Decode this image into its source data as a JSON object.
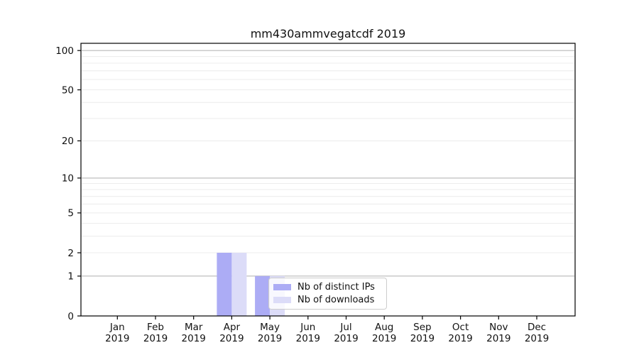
{
  "chart_data": {
    "type": "bar",
    "title": "mm430ammvegatcdf 2019",
    "categories": [
      "Jan 2019",
      "Feb 2019",
      "Mar 2019",
      "Apr 2019",
      "May 2019",
      "Jun 2019",
      "Jul 2019",
      "Aug 2019",
      "Sep 2019",
      "Oct 2019",
      "Nov 2019",
      "Dec 2019"
    ],
    "series": [
      {
        "name": "Nb of distinct IPs",
        "color": "#acacf5",
        "values": [
          0,
          0,
          0,
          2,
          1,
          0,
          0,
          0,
          0,
          0,
          0,
          0
        ]
      },
      {
        "name": "Nb of downloads",
        "color": "#dcdcf8",
        "values": [
          0,
          0,
          0,
          2,
          1,
          0,
          0,
          0,
          0,
          0,
          0,
          0
        ]
      }
    ],
    "xlabel": "",
    "ylabel": "",
    "y_scale": "log1p",
    "y_ticks": [
      0,
      1,
      2,
      5,
      10,
      20,
      50,
      100
    ],
    "ylim": [
      0,
      113
    ],
    "grid": true,
    "legend_position": "lower right inside plot",
    "colors": {
      "major_gridline": "#b9b9b9",
      "minor_gridline": "#ececec",
      "axis": "#000000",
      "legend_border": "#cccccc"
    }
  }
}
